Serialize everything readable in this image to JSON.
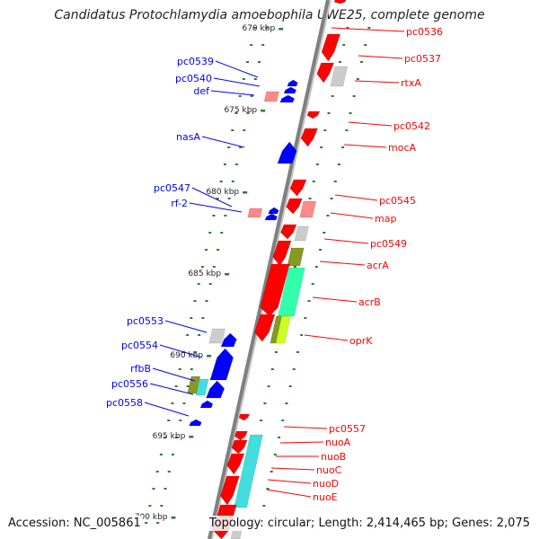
{
  "title": "Candidatus Protochlamydia amoebophila UWE25, complete genome",
  "footer": {
    "accession": "Accession: NC_005861",
    "summary": "Topology: circular; Length: 2,414,465 bp; Genes: 2,075"
  },
  "colors": {
    "forward": "#ff0000",
    "reverse": "#0000ff",
    "backbone": "#808080",
    "tick": "#2f7a2f",
    "pseudo": "#ff8888",
    "unknown": "#cccccc",
    "cyan": "#44dddd",
    "mint": "#33ffaa",
    "olive": "#889922",
    "lime": "#ccff22"
  },
  "ticks": [
    "670 kbp",
    "675 kbp",
    "680 kbp",
    "685 kbp",
    "690 kbp",
    "695 kbp",
    "700 kbp"
  ],
  "forward_labels": [
    "pc0536",
    "pc0537",
    "rtxA",
    "pc0542",
    "mocA",
    "pc0545",
    "map",
    "pc0549",
    "acrA",
    "acrB",
    "oprK",
    "pc0557",
    "nuoA",
    "nuoB",
    "nuoC",
    "nuoD",
    "nuoE"
  ],
  "reverse_labels": [
    "pc0539",
    "pc0540",
    "def",
    "nasA",
    "pc0547",
    "rf-2",
    "pc0553",
    "pc0554",
    "rfbB",
    "pc0556",
    "pc0558"
  ]
}
